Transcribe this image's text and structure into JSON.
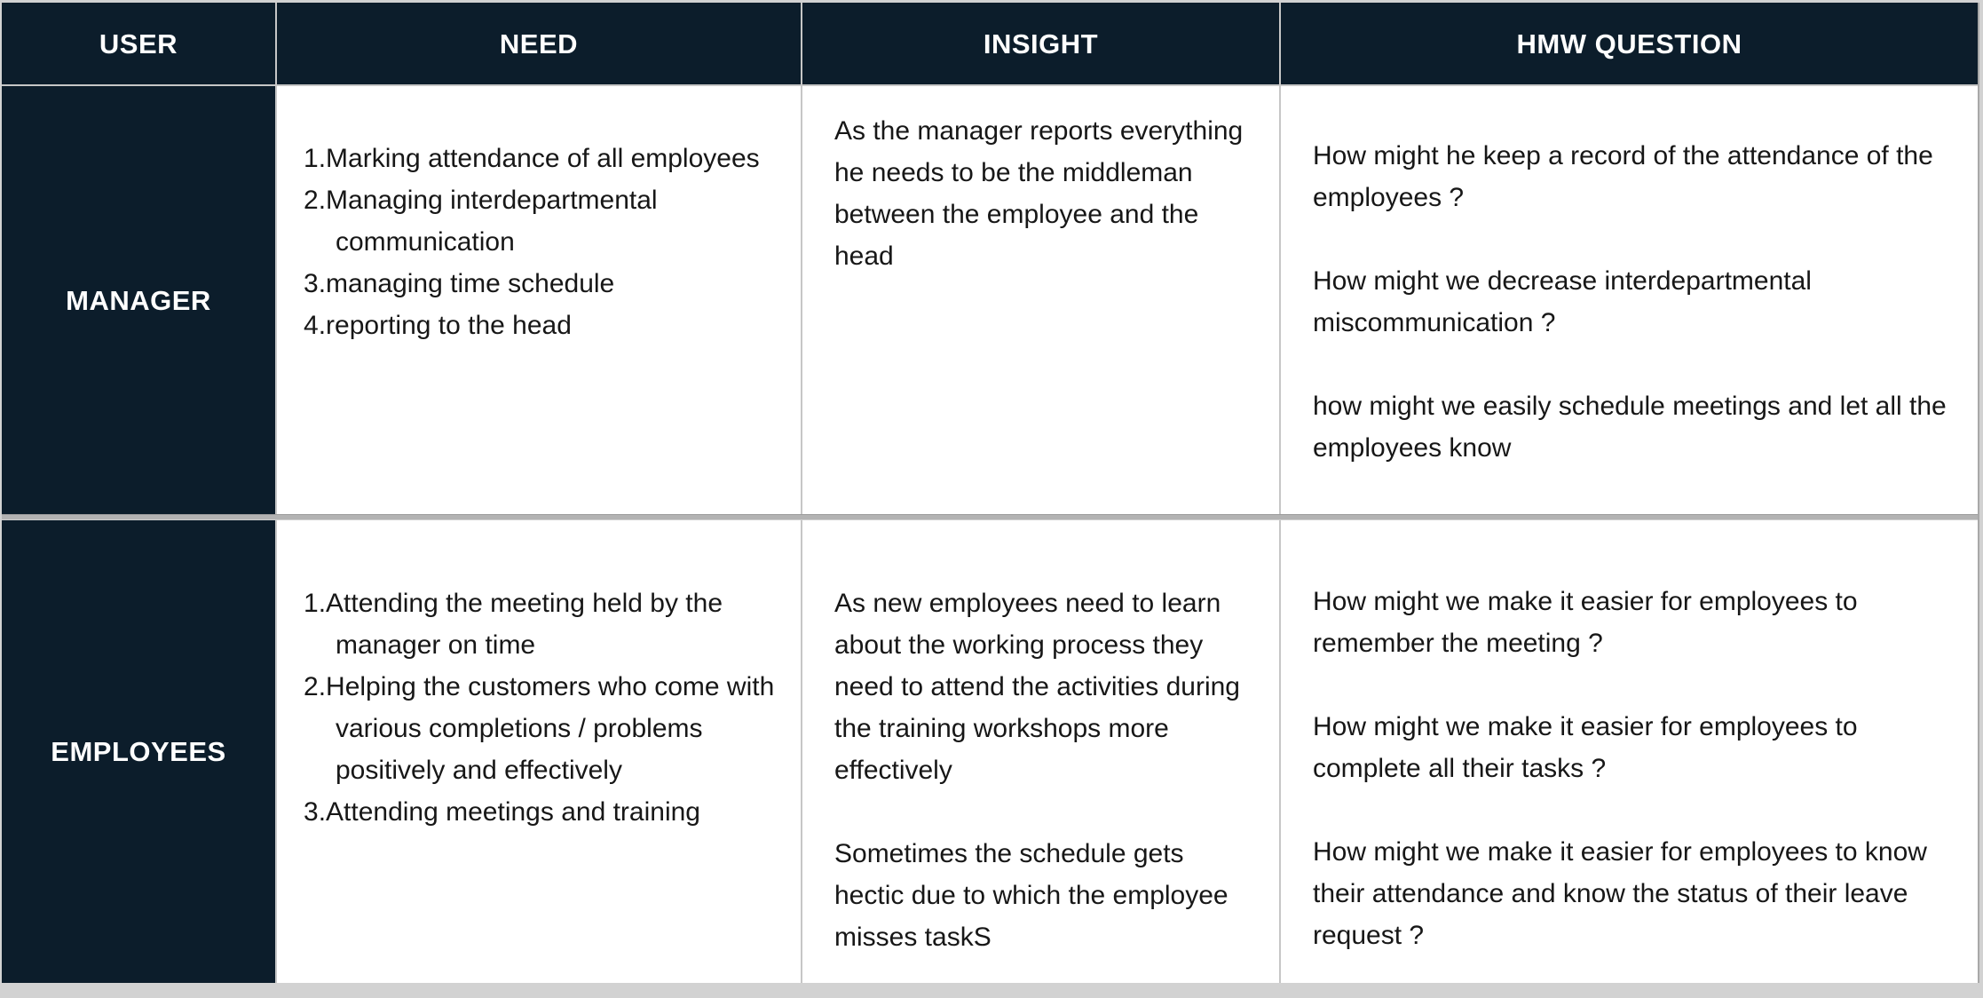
{
  "colors": {
    "header_bg": "#0c1d2b",
    "header_text": "#ffffff",
    "cell_bg": "#ffffff",
    "body_text": "#171717",
    "cell_border": "#c6c6c6",
    "row_divider": "#b3b3b3",
    "page_bg": "#d2d2d2"
  },
  "table": {
    "columns": [
      "USER",
      "NEED",
      "INSIGHT",
      "HMW QUESTION"
    ],
    "rows": [
      {
        "user": "MANAGER",
        "needs": [
          "Marking attendance of all employees",
          "Managing interdepartmental communication",
          "managing time schedule",
          "reporting to the head"
        ],
        "insights": [
          "As the manager reports everything he needs to be the middleman between the employee and the head"
        ],
        "hmw_questions": [
          "How might he keep a record of the attendance of the employees ?",
          "How might we decrease interdepartmental miscommunication ?",
          "how might we easily schedule meetings and let all the employees know"
        ]
      },
      {
        "user": "EMPLOYEES",
        "needs": [
          "Attending the meeting held by the manager on time",
          "Helping the customers who come with various completions / problems positively and effectively",
          "Attending meetings and training"
        ],
        "insights": [
          "As new employees need to learn about the working process they need to attend the activities during the training workshops more effectively",
          "Sometimes the schedule gets hectic due to which the employee misses taskS"
        ],
        "hmw_questions": [
          "How might we make it easier for employees to remember the meeting ?",
          "How might we make it easier for employees to complete all their tasks ?",
          "How might we make it easier for employees to know their attendance and know the status of their leave request ?"
        ]
      }
    ]
  }
}
